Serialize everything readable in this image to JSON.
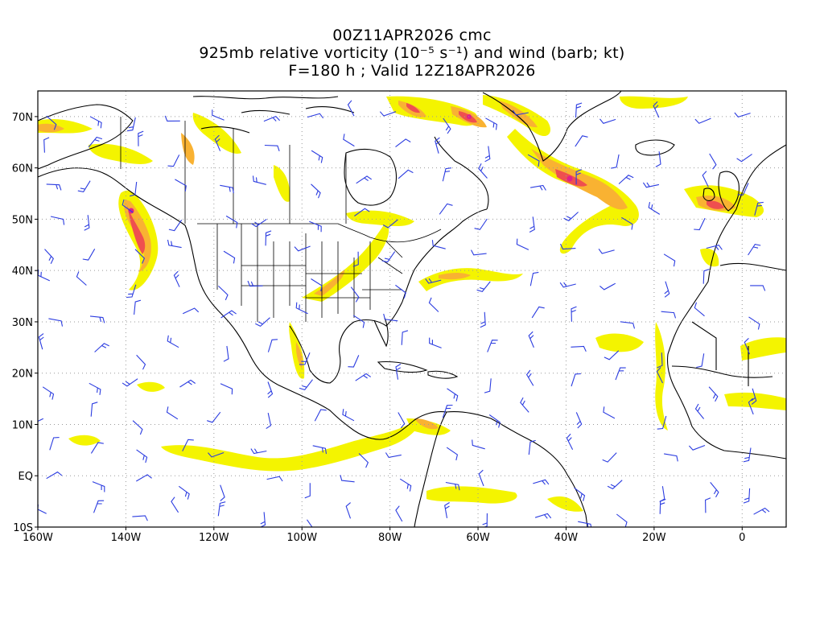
{
  "title": {
    "line1": "00Z11APR2026 cmc",
    "line2": "925mb relative vorticity (10⁻⁵ s⁻¹) and wind (barb; kt)",
    "line3": "F=180 h ; Valid 12Z18APR2026"
  },
  "map": {
    "lon_range": [
      -160,
      10
    ],
    "lat_range": [
      -10,
      75
    ],
    "lat_ticks": [
      {
        "value": 70,
        "label": "70N"
      },
      {
        "value": 60,
        "label": "60N"
      },
      {
        "value": 50,
        "label": "50N"
      },
      {
        "value": 40,
        "label": "40N"
      },
      {
        "value": 30,
        "label": "30N"
      },
      {
        "value": 20,
        "label": "20N"
      },
      {
        "value": 10,
        "label": "10N"
      },
      {
        "value": 0,
        "label": "EQ"
      },
      {
        "value": -10,
        "label": "10S"
      }
    ],
    "lon_ticks": [
      {
        "value": -160,
        "label": "160W"
      },
      {
        "value": -140,
        "label": "140W"
      },
      {
        "value": -120,
        "label": "120W"
      },
      {
        "value": -100,
        "label": "100W"
      },
      {
        "value": -80,
        "label": "80W"
      },
      {
        "value": -60,
        "label": "60W"
      },
      {
        "value": -40,
        "label": "40W"
      },
      {
        "value": -20,
        "label": "20W"
      },
      {
        "value": 0,
        "label": "0"
      }
    ],
    "grid": true,
    "colors": {
      "vort_low": "#f4f400",
      "vort_mid": "#f9b232",
      "vort_high": "#ef4f4f",
      "vort_max": "#e0208a",
      "barb": "#2b3ce0",
      "coast": "#000000",
      "grid": "#9a9a9a"
    }
  }
}
